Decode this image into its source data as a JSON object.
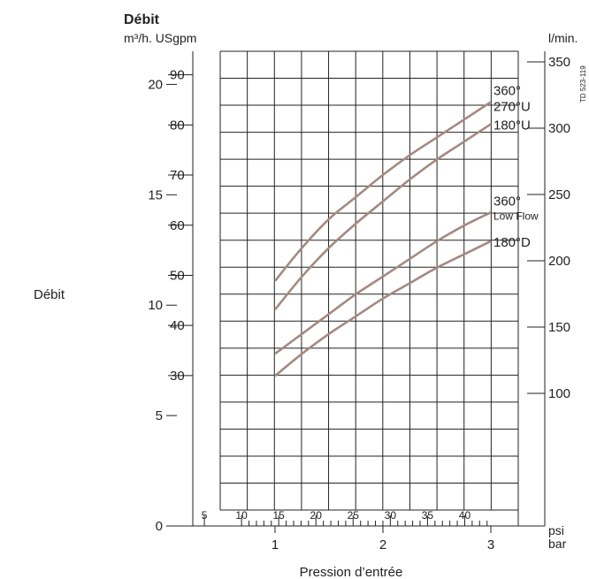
{
  "header": {
    "title": "Débit",
    "units_left": "m³/h. USgpm",
    "units_right": "l/min.",
    "code": "TD 523-119"
  },
  "side_label": "Débit",
  "xlabel": "Pression d’entrée",
  "unit_psi": "psi",
  "unit_bar": "bar",
  "colors": {
    "curve": "#a38a80",
    "grid": "#222222"
  },
  "chart_data": {
    "type": "line",
    "xlabel": "Pression d’entrée",
    "ylabel": "Débit",
    "x_unit": "bar",
    "xlim": [
      0,
      3
    ],
    "grid": true,
    "axes": {
      "m3h": {
        "ticks": [
          0,
          5,
          10,
          15,
          20
        ],
        "range": [
          0,
          21.5
        ]
      },
      "usgpm": {
        "ticks": [
          30,
          40,
          50,
          60,
          70,
          80,
          90
        ],
        "range": [
          0,
          94.7
        ]
      },
      "lmin": {
        "ticks": [
          100,
          150,
          200,
          250,
          300,
          350
        ],
        "range": [
          0,
          358
        ]
      },
      "psi": {
        "ticks": [
          5,
          10,
          15,
          20,
          25,
          30,
          35,
          40
        ],
        "minor": [
          11,
          12,
          13,
          14,
          16,
          17,
          18,
          19,
          21,
          22,
          23,
          24,
          26,
          27,
          28,
          29,
          31,
          32,
          33,
          34,
          36,
          37,
          38,
          39,
          41,
          42,
          43
        ]
      },
      "bar": {
        "ticks": [
          1,
          2,
          3
        ]
      }
    },
    "series": [
      {
        "name": "360° 270°U",
        "label_lines": [
          "360°",
          "270°U"
        ],
        "x": [
          1.0,
          1.25,
          1.5,
          1.75,
          2.0,
          2.25,
          2.5,
          2.75,
          3.0
        ],
        "y": [
          11.1,
          12.6,
          13.9,
          14.9,
          15.9,
          16.8,
          17.6,
          18.4,
          19.2
        ]
      },
      {
        "name": "180°U",
        "label_lines": [
          "180°U"
        ],
        "x": [
          1.0,
          1.25,
          1.5,
          1.75,
          2.0,
          2.25,
          2.5,
          2.75,
          3.0
        ],
        "y": [
          9.8,
          11.3,
          12.6,
          13.7,
          14.7,
          15.7,
          16.6,
          17.4,
          18.2
        ]
      },
      {
        "name": "360° Low Flow",
        "label_lines": [
          "360°",
          "Low Flow"
        ],
        "x": [
          1.0,
          1.25,
          1.5,
          1.75,
          2.0,
          2.25,
          2.5,
          2.75,
          3.0
        ],
        "y": [
          7.8,
          8.7,
          9.6,
          10.5,
          11.3,
          12.1,
          12.9,
          13.6,
          14.2
        ]
      },
      {
        "name": "180°D",
        "label_lines": [
          "180°D"
        ],
        "x": [
          1.0,
          1.25,
          1.5,
          1.75,
          2.0,
          2.25,
          2.5,
          2.75,
          3.0
        ],
        "y": [
          6.8,
          7.8,
          8.7,
          9.5,
          10.3,
          11.0,
          11.7,
          12.3,
          12.9
        ]
      }
    ]
  }
}
